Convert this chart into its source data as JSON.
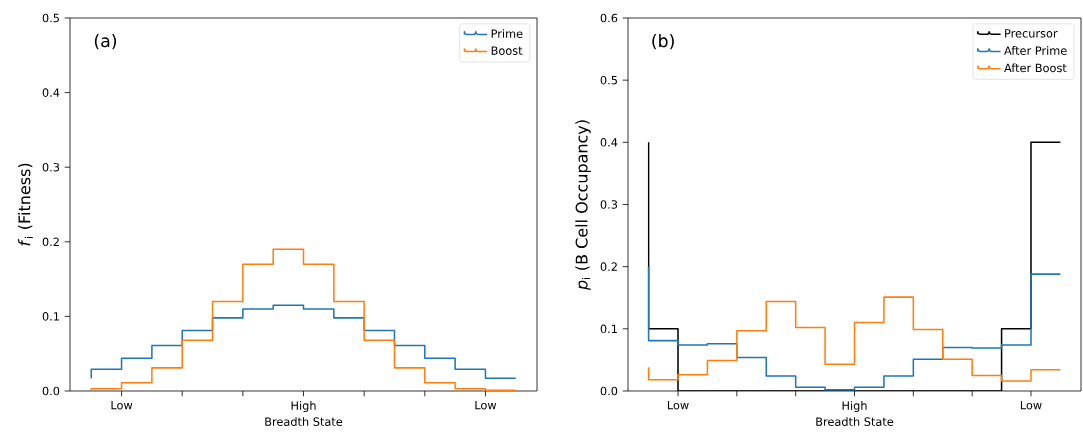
{
  "chart_data": [
    {
      "type": "step",
      "xlabel": "Breadth State",
      "ylabel": "*f*$_{i}$ (Fitness)",
      "annotations": [
        "(a)"
      ],
      "categories": [
        null,
        "Low",
        null,
        null,
        null,
        null,
        null,
        "High",
        null,
        null,
        null,
        null,
        null,
        "Low",
        null
      ],
      "series": [
        {
          "name": "Prime",
          "color": "#1f77b4",
          "values": [
            0.017,
            0.029,
            0.044,
            0.061,
            0.081,
            0.098,
            0.11,
            0.115,
            0.11,
            0.098,
            0.081,
            0.061,
            0.044,
            0.029,
            0.017
          ]
        },
        {
          "name": "Boost",
          "color": "#ff7f0e",
          "values": [
            0.001,
            0.003,
            0.011,
            0.031,
            0.068,
            0.12,
            0.17,
            0.19,
            0.17,
            0.12,
            0.068,
            0.031,
            0.011,
            0.003,
            0.001
          ]
        }
      ],
      "ylim": [
        0,
        0.5
      ],
      "yticks": [
        {
          "value": 0,
          "label": "0.0"
        },
        {
          "value": 0.1,
          "label": "0.1"
        },
        {
          "value": 0.2,
          "label": "0.2"
        },
        {
          "value": 0.3,
          "label": "0.3"
        },
        {
          "value": 0.4,
          "label": "0.4"
        },
        {
          "value": 0.5,
          "label": "0.5"
        }
      ],
      "legend": "top right",
      "grid": false
    },
    {
      "type": "step",
      "xlabel": "Breadth State",
      "ylabel": "*p*$_{i}$ (B Cell Occupancy)",
      "annotations": [
        "(b)"
      ],
      "categories": [
        null,
        "Low",
        null,
        null,
        null,
        null,
        null,
        "High",
        null,
        null,
        null,
        null,
        null,
        "Low",
        null
      ],
      "series": [
        {
          "name": "Precursor",
          "color": "#000000",
          "values": [
            0.4,
            0.1,
            0,
            0,
            0,
            0,
            0,
            0,
            0,
            0,
            0,
            0,
            0,
            0.1,
            0.4
          ]
        },
        {
          "name": "After Prime",
          "color": "#1f77b4",
          "values": [
            0.2,
            0.081,
            0.074,
            0.076,
            0.054,
            0.024,
            0.006,
            0.002,
            0.006,
            0.024,
            0.051,
            0.07,
            0.069,
            0.074,
            0.188
          ]
        },
        {
          "name": "After Boost",
          "color": "#ff7f0e",
          "values": [
            0.038,
            0.018,
            0.026,
            0.049,
            0.097,
            0.144,
            0.102,
            0.043,
            0.11,
            0.151,
            0.099,
            0.051,
            0.025,
            0.016,
            0.034
          ]
        }
      ],
      "ylim": [
        0,
        0.6
      ],
      "yticks": [
        {
          "value": 0,
          "label": "0.0"
        },
        {
          "value": 0.1,
          "label": "0.1"
        },
        {
          "value": 0.2,
          "label": "0.2"
        },
        {
          "value": 0.3,
          "label": "0.3"
        },
        {
          "value": 0.4,
          "label": "0.4"
        },
        {
          "value": 0.5,
          "label": "0.5"
        },
        {
          "value": 0.6,
          "label": "0.6"
        }
      ],
      "legend": "top right",
      "grid": false
    }
  ]
}
